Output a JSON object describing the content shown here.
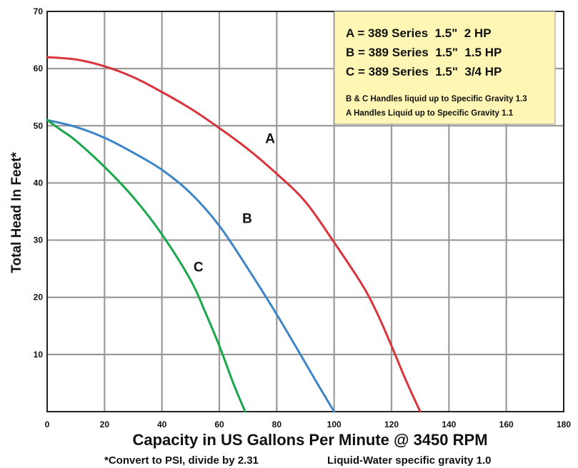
{
  "chart_data": {
    "type": "line",
    "xlabel": "Capacity in US Gallons Per Minute @ 3450 RPM",
    "ylabel": "Total Head In Feet*",
    "xlim": [
      0,
      180
    ],
    "ylim": [
      0,
      70
    ],
    "x_ticks": [
      0,
      20,
      40,
      60,
      80,
      100,
      120,
      140,
      160,
      180
    ],
    "y_ticks": [
      10,
      20,
      30,
      40,
      50,
      60,
      70
    ],
    "grid": true,
    "legend_position": "top-right",
    "notes": [
      "*Convert to PSI, divide by 2.31",
      "Liquid-Water specific gravity 1.0"
    ],
    "legend": {
      "entries": [
        "A = 389 Series  1.5\"  2 HP",
        "B = 389 Series  1.5\"  1.5 HP",
        "C = 389 Series  1.5\"  3/4 HP"
      ],
      "footnotes": [
        "B & C Handles liquid up to Specific Gravity 1.3",
        "A Handles Liquid up to Specific Gravity 1.1"
      ]
    },
    "series": [
      {
        "name": "A",
        "color": "#d9343c",
        "label_at": [
          76,
          47
        ],
        "x": [
          0,
          10,
          20,
          30,
          40,
          50,
          60,
          70,
          80,
          90,
          100,
          110,
          115,
          120,
          125,
          130
        ],
        "y": [
          62,
          61.6,
          60.4,
          58.5,
          55.9,
          53,
          49.6,
          45.9,
          41.6,
          36.7,
          29.6,
          22,
          17.2,
          11.5,
          5.5,
          0
        ]
      },
      {
        "name": "B",
        "color": "#3d85c6",
        "label_at": [
          68,
          33
        ],
        "x": [
          0,
          10,
          20,
          30,
          40,
          50,
          60,
          70,
          80,
          90,
          95,
          100
        ],
        "y": [
          51,
          49.8,
          47.9,
          45.3,
          42.3,
          38.2,
          32.5,
          25,
          17,
          8.5,
          4.2,
          0
        ]
      },
      {
        "name": "C",
        "color": "#1aa64b",
        "label_at": [
          51,
          24.5
        ],
        "x": [
          0,
          5,
          10,
          20,
          30,
          40,
          50,
          55,
          60,
          65,
          69
        ],
        "y": [
          51,
          49.2,
          47.4,
          42.8,
          37.5,
          31,
          23,
          17.5,
          11.5,
          4.8,
          0
        ]
      }
    ]
  }
}
